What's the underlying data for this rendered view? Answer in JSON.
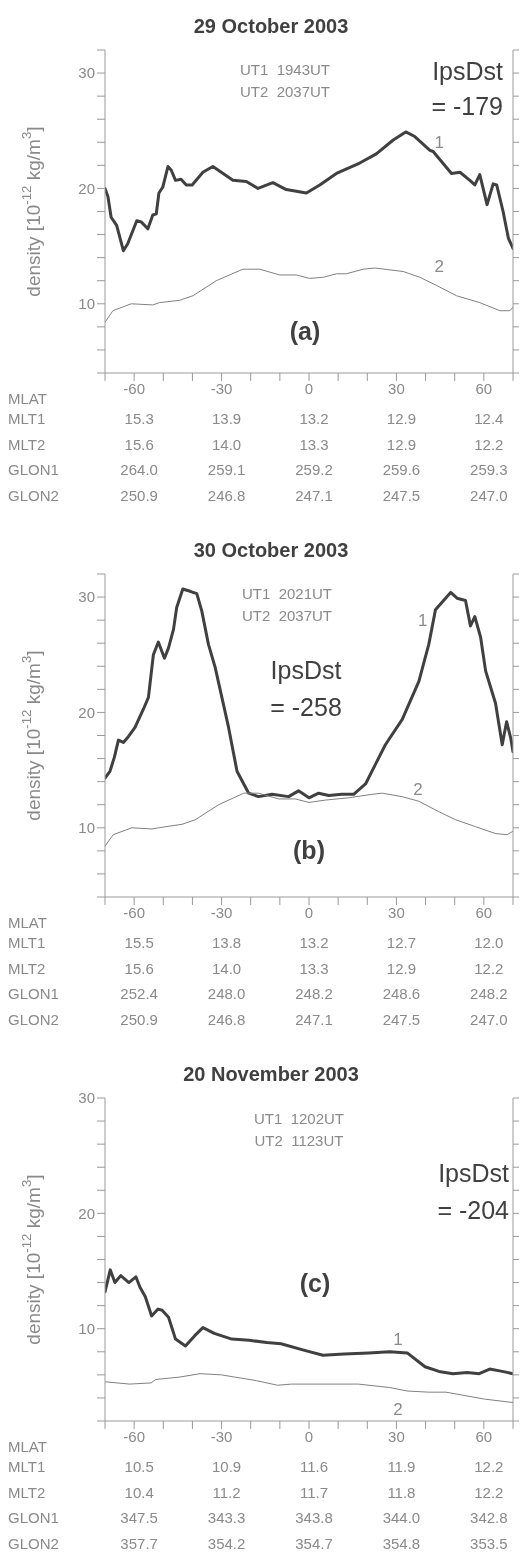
{
  "chart_data": [
    {
      "type": "line",
      "title": "29 October 2003",
      "xlabel": "MLAT",
      "ylabel": "density [10$^{-12}$ kg/m$^{3}$]",
      "marker": "none",
      "xlim": [
        -70,
        70
      ],
      "xticks": [
        {
          "value": -70,
          "label": null
        },
        -60,
        {
          "value": -50,
          "label": null
        },
        {
          "value": -40,
          "label": null
        },
        -30,
        {
          "value": -20,
          "label": null
        },
        {
          "value": -10,
          "label": null
        },
        0,
        {
          "value": 10,
          "label": null
        },
        {
          "value": 20,
          "label": null
        },
        30,
        {
          "value": 40,
          "label": null
        },
        {
          "value": 50,
          "label": null
        },
        60,
        {
          "value": 70,
          "label": null
        }
      ],
      "ylim": [
        4,
        32
      ],
      "yticks": [
        {
          "value": 4,
          "label": null
        },
        {
          "value": 6,
          "label": null
        },
        {
          "value": 8,
          "label": null
        },
        10,
        {
          "value": 12,
          "label": null
        },
        {
          "value": 14,
          "label": null
        },
        {
          "value": 16,
          "label": null
        },
        {
          "value": 18,
          "label": null
        },
        20,
        {
          "value": 22,
          "label": null
        },
        {
          "value": 24,
          "label": null
        },
        {
          "value": 26,
          "label": null
        },
        {
          "value": 28,
          "label": null
        },
        30,
        {
          "value": 32,
          "label": null
        }
      ],
      "series": [
        {
          "name": "1",
          "color": "#404040",
          "x": [
            -70,
            -69.0,
            -67.9,
            -66.0,
            -63.7,
            -62.2,
            -59.1,
            -57.6,
            -55.3,
            -53.6,
            -52.4,
            -51.5,
            -50.2,
            -48.4,
            -47.3,
            -45.8,
            -43.9,
            -42.1,
            -40.1,
            -36.4,
            -33.0,
            -30.1,
            -26.1,
            -21.5,
            -17.5,
            -12.4,
            -7.8,
            -0.9,
            3.7,
            9.4,
            17.4,
            23.1,
            28.9,
            33.2,
            36.3,
            41.5,
            42.6,
            48.9,
            51.8,
            55.2,
            56.9,
            58.6,
            61.1,
            63.2,
            64.4,
            66.6,
            68.4,
            70
          ],
          "values": [
            20.0,
            19.3,
            17.5,
            16.8,
            14.6,
            15.2,
            17.2,
            17.1,
            16.5,
            17.7,
            17.8,
            19.6,
            20.1,
            21.9,
            21.6,
            20.7,
            20.8,
            20.3,
            20.3,
            21.4,
            21.9,
            21.4,
            20.7,
            20.6,
            20.0,
            20.5,
            19.9,
            19.6,
            20.3,
            21.3,
            22.2,
            23.0,
            24.2,
            24.9,
            24.5,
            23.3,
            23.2,
            21.3,
            21.4,
            20.7,
            20.3,
            21.2,
            18.6,
            20.4,
            20.3,
            18.0,
            15.7,
            14.8
          ]
        },
        {
          "name": "2",
          "color": "#808080",
          "x": [
            -70,
            -67.3,
            -61.0,
            -53.6,
            -51.3,
            -44.4,
            -39.8,
            -31.8,
            -22.7,
            -16.9,
            -10.1,
            -4.4,
            0.2,
            5.0,
            9.4,
            12.8,
            18.6,
            22.6,
            32.3,
            38.0,
            43.7,
            50.6,
            58.6,
            65.5,
            68.9,
            70
          ],
          "values": [
            8.4,
            9.4,
            10.0,
            9.9,
            10.1,
            10.3,
            10.7,
            12.0,
            13.0,
            13.0,
            12.5,
            12.5,
            12.2,
            12.3,
            12.6,
            12.6,
            13.0,
            13.1,
            12.8,
            12.3,
            11.6,
            10.7,
            10.1,
            9.4,
            9.4,
            9.7
          ]
        }
      ],
      "annotations": [
        "UT1  1943UT",
        "UT2  2037UT",
        "IpsDst",
        "= -179",
        "(a)",
        "MLT1",
        "15.3",
        "13.9",
        "13.2",
        "12.9",
        "12.4",
        "MLT2",
        "15.6",
        "14.0",
        "13.3",
        "12.9",
        "12.2",
        "GLON1",
        "264.0",
        "259.1",
        "259.2",
        "259.6",
        "259.3",
        "GLON2",
        "250.9",
        "246.8",
        "247.1",
        "247.5",
        "247.0"
      ]
    },
    {
      "type": "line",
      "title": "30 October 2003",
      "xlabel": "MLAT",
      "ylabel": "density [10$^{-12}$ kg/m$^{3}$]",
      "marker": "none",
      "xlim": [
        -70,
        70
      ],
      "xticks": [
        {
          "value": -70,
          "label": null
        },
        -60,
        {
          "value": -50,
          "label": null
        },
        {
          "value": -40,
          "label": null
        },
        -30,
        {
          "value": -20,
          "label": null
        },
        {
          "value": -10,
          "label": null
        },
        0,
        {
          "value": 10,
          "label": null
        },
        {
          "value": 20,
          "label": null
        },
        30,
        {
          "value": 40,
          "label": null
        },
        {
          "value": 50,
          "label": null
        },
        60,
        {
          "value": 70,
          "label": null
        }
      ],
      "ylim": [
        4,
        32
      ],
      "yticks": [
        {
          "value": 4,
          "label": null
        },
        {
          "value": 6,
          "label": null
        },
        {
          "value": 8,
          "label": null
        },
        10,
        {
          "value": 12,
          "label": null
        },
        {
          "value": 14,
          "label": null
        },
        {
          "value": 16,
          "label": null
        },
        {
          "value": 18,
          "label": null
        },
        20,
        {
          "value": 22,
          "label": null
        },
        {
          "value": 24,
          "label": null
        },
        {
          "value": 26,
          "label": null
        },
        {
          "value": 28,
          "label": null
        },
        30,
        {
          "value": 32,
          "label": null
        }
      ],
      "series": [
        {
          "name": "1",
          "color": "#404040",
          "x": [
            -70,
            -68.3,
            -66.8,
            -65.4,
            -63.7,
            -62.0,
            -59.7,
            -56.8,
            -55.1,
            -53.4,
            -51.7,
            -49.6,
            -48.2,
            -46.5,
            -45.4,
            -43.3,
            -40.8,
            -38.5,
            -36.8,
            -34.5,
            -32.2,
            -29.9,
            -27.6,
            -24.7,
            -20.7,
            -17.3,
            -12.7,
            -7.0,
            -3.6,
            0,
            3.3,
            6.8,
            11.3,
            15.3,
            19.4,
            22.8,
            26.2,
            32.0,
            37.7,
            41.1,
            43.4,
            48.6,
            50.8,
            53.7,
            55.4,
            56.9,
            58.9,
            60.6,
            64.0,
            66.3,
            67.8,
            69.2,
            70
          ],
          "values": [
            14.3,
            14.9,
            16.1,
            17.6,
            17.4,
            17.9,
            18.7,
            20.3,
            21.3,
            25.0,
            26.1,
            24.7,
            25.6,
            27.2,
            29.1,
            30.7,
            30.5,
            30.3,
            28.8,
            25.9,
            23.9,
            21.3,
            18.7,
            14.9,
            13.0,
            12.7,
            12.9,
            12.7,
            13.2,
            12.6,
            13.0,
            12.8,
            12.9,
            12.9,
            13.8,
            15.5,
            17.2,
            19.4,
            22.7,
            25.9,
            28.9,
            30.4,
            29.9,
            29.7,
            27.5,
            28.3,
            26.5,
            23.6,
            20.8,
            17.2,
            19.2,
            17.8,
            16.6
          ]
        },
        {
          "name": "2",
          "color": "#808080",
          "x": [
            -70,
            -67.2,
            -60.8,
            -53.9,
            -51.6,
            -43.6,
            -39.0,
            -31.0,
            -22.4,
            -17.3,
            -10.4,
            -4.7,
            0,
            5.6,
            13.6,
            21.6,
            25.1,
            31.9,
            37.7,
            44.5,
            50.3,
            57.1,
            64.0,
            68.0,
            70
          ],
          "values": [
            8.4,
            9.4,
            10.0,
            9.9,
            10.0,
            10.3,
            10.7,
            12.0,
            13.0,
            13.0,
            12.5,
            12.5,
            12.2,
            12.4,
            12.6,
            12.9,
            13.0,
            12.7,
            12.3,
            11.4,
            10.7,
            10.1,
            9.5,
            9.4,
            9.7
          ]
        }
      ],
      "annotations": [
        "UT1  2021UT",
        "UT2  2037UT",
        "IpsDst",
        "= -258",
        "(b)",
        "MLT1",
        "15.5",
        "13.8",
        "13.2",
        "12.7",
        "12.0",
        "MLT2",
        "15.6",
        "14.0",
        "13.3",
        "12.9",
        "12.2",
        "GLON1",
        "252.4",
        "248.0",
        "248.2",
        "248.6",
        "248.2",
        "GLON2",
        "250.9",
        "246.8",
        "247.1",
        "247.5",
        "247.0"
      ]
    },
    {
      "type": "line",
      "title": "20 November 2003",
      "xlabel": "MLAT",
      "ylabel": "density [10$^{-12}$ kg/m$^{3}$]",
      "marker": "none",
      "xlim": [
        -70,
        70
      ],
      "xticks": [
        {
          "value": -70,
          "label": null
        },
        -60,
        {
          "value": -50,
          "label": null
        },
        {
          "value": -40,
          "label": null
        },
        -30,
        {
          "value": -20,
          "label": null
        },
        {
          "value": -10,
          "label": null
        },
        0,
        {
          "value": 10,
          "label": null
        },
        {
          "value": 20,
          "label": null
        },
        30,
        {
          "value": 40,
          "label": null
        },
        {
          "value": 50,
          "label": null
        },
        60,
        {
          "value": 70,
          "label": null
        }
      ],
      "ylim": [
        2,
        30
      ],
      "yticks": [
        {
          "value": 2,
          "label": null
        },
        {
          "value": 4,
          "label": null
        },
        {
          "value": 6,
          "label": null
        },
        {
          "value": 8,
          "label": null
        },
        10,
        {
          "value": 12,
          "label": null
        },
        {
          "value": 14,
          "label": null
        },
        {
          "value": 16,
          "label": null
        },
        {
          "value": 18,
          "label": null
        },
        20,
        {
          "value": 22,
          "label": null
        },
        {
          "value": 24,
          "label": null
        },
        {
          "value": 26,
          "label": null
        },
        {
          "value": 28,
          "label": null
        },
        30
      ],
      "series": [
        {
          "name": "1",
          "color": "#404040",
          "x": [
            -70,
            -68.2,
            -66.6,
            -64.6,
            -61.8,
            -59.4,
            -58.0,
            -56.2,
            -54.0,
            -51.8,
            -50.4,
            -48.2,
            -45.8,
            -42.4,
            -39.2,
            -36.4,
            -32.5,
            -26.5,
            -20.5,
            -14.5,
            -9.6,
            -1.2,
            4.8,
            12.0,
            20.5,
            27.7,
            33.7,
            39.8,
            44.6,
            49.4,
            54.2,
            58.4,
            62.0,
            66.3,
            70
          ],
          "values": [
            13.2,
            15.1,
            14.0,
            14.6,
            14.0,
            14.5,
            13.6,
            12.8,
            11.1,
            11.7,
            11.6,
            11.0,
            9.1,
            8.5,
            9.4,
            10.1,
            9.6,
            9.1,
            9.0,
            8.8,
            8.7,
            8.1,
            7.7,
            7.8,
            7.9,
            8.0,
            7.9,
            6.7,
            6.3,
            6.1,
            6.2,
            6.1,
            6.5,
            6.3,
            6.1
          ]
        },
        {
          "name": "2",
          "color": "#808080",
          "x": [
            -70,
            -61.6,
            -54.2,
            -52.6,
            -44.6,
            -37.4,
            -30.1,
            -25.3,
            -18.1,
            -10.8,
            -6.0,
            2.4,
            16.9,
            27.7,
            33.7,
            41.0,
            47.0,
            60.2,
            70
          ],
          "values": [
            5.4,
            5.2,
            5.3,
            5.6,
            5.8,
            6.1,
            6.0,
            5.8,
            5.5,
            5.1,
            5.2,
            5.2,
            5.2,
            4.9,
            4.6,
            4.5,
            4.5,
            3.9,
            3.6
          ]
        }
      ],
      "annotations": [
        "UT1  1202UT",
        "UT2  1123UT",
        "IpsDst",
        "= -204",
        "(c)",
        "MLT1",
        "10.5",
        "10.9",
        "11.6",
        "11.9",
        "12.2",
        "MLT2",
        "10.4",
        "11.2",
        "11.7",
        "11.8",
        "12.2",
        "GLON1",
        "347.5",
        "343.3",
        "343.8",
        "344.0",
        "342.8",
        "GLON2",
        "357.7",
        "354.2",
        "354.7",
        "354.8",
        "353.5"
      ]
    }
  ]
}
